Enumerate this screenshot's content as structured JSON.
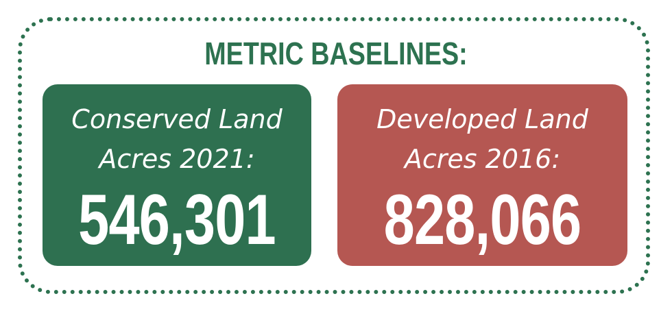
{
  "heading": "METRIC BASELINES:",
  "colors": {
    "border": "#2d7250",
    "heading": "#2d7250",
    "conserved_card": "#2e7050",
    "developed_card": "#b55752",
    "card_text": "#ffffff"
  },
  "cards": [
    {
      "label_line1": "Conserved Land",
      "label_line2": "Acres 2021:",
      "value": "546,301"
    },
    {
      "label_line1": "Developed Land",
      "label_line2": "Acres 2016:",
      "value": "828,066"
    }
  ]
}
